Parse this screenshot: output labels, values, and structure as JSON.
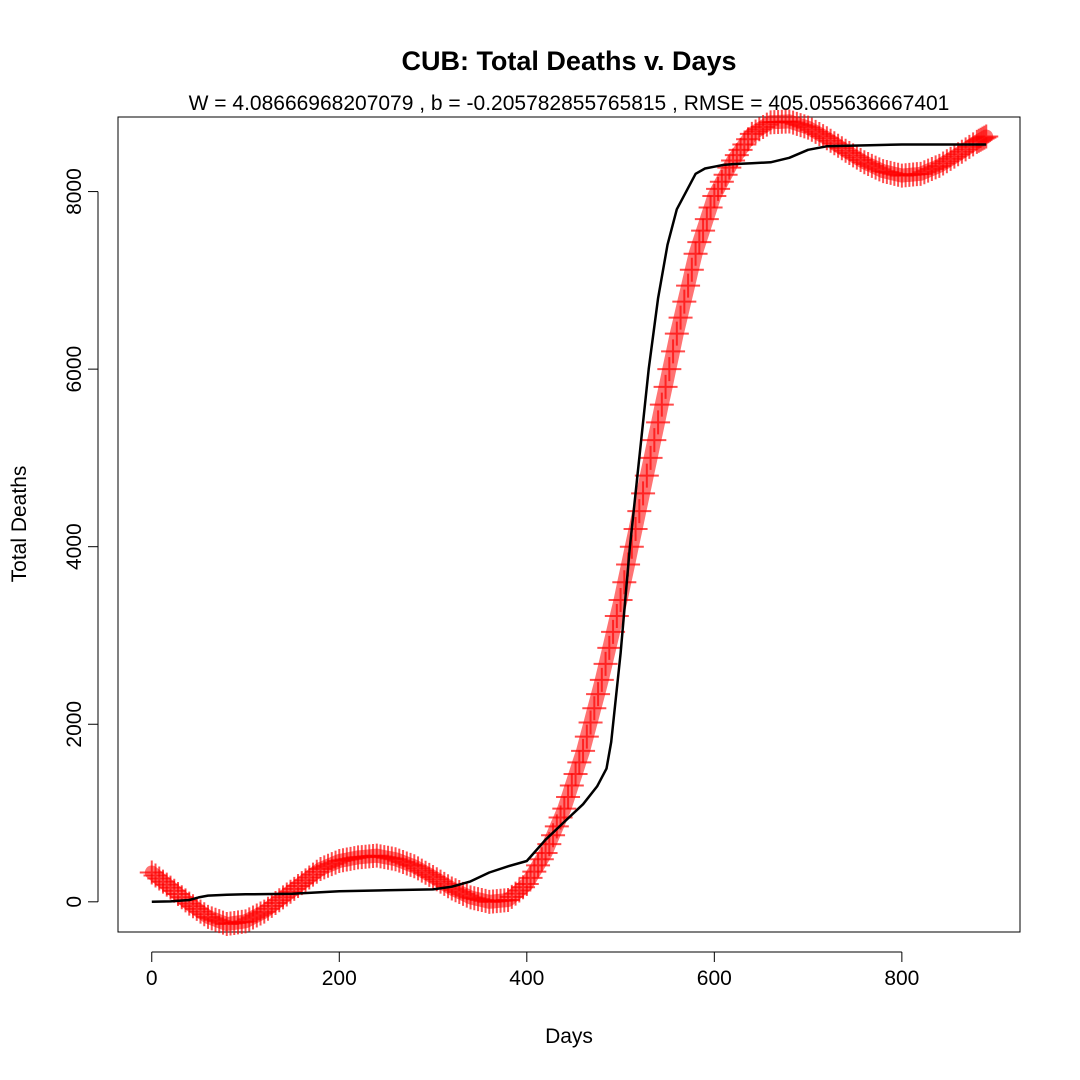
{
  "chart_data": {
    "type": "line",
    "title": "CUB: Total Deaths v. Days",
    "subtitle": "W = 4.08666968207079 , b = -0.205782855765815 , RMSE = 405.055636667401",
    "xlabel": "Days",
    "ylabel": "Total Deaths",
    "xlim": [
      -36,
      926
    ],
    "ylim": [
      -340,
      8840
    ],
    "xticks": [
      0,
      200,
      400,
      600,
      800
    ],
    "yticks": [
      0,
      2000,
      4000,
      6000,
      8000
    ],
    "grid": false,
    "legend": "none",
    "series": [
      {
        "style": "line",
        "color": "#000000",
        "x": [
          0,
          20,
          40,
          50,
          60,
          80,
          100,
          150,
          200,
          250,
          300,
          320,
          340,
          360,
          380,
          400,
          420,
          440,
          460,
          475,
          485,
          490,
          500,
          510,
          520,
          530,
          540,
          550,
          560,
          570,
          580,
          590,
          600,
          610,
          620,
          640,
          660,
          680,
          700,
          720,
          760,
          800,
          850,
          890
        ],
        "y": [
          0,
          5,
          20,
          50,
          70,
          80,
          85,
          90,
          120,
          130,
          140,
          170,
          230,
          330,
          400,
          460,
          700,
          900,
          1100,
          1300,
          1500,
          1800,
          2800,
          4000,
          5000,
          6000,
          6800,
          7400,
          7800,
          8000,
          8200,
          8260,
          8280,
          8300,
          8310,
          8320,
          8330,
          8380,
          8470,
          8510,
          8520,
          8530,
          8530,
          8530
        ]
      },
      {
        "style": "markers",
        "marker": "plus",
        "color": "#ff0000",
        "equation": "1000 * W * (1 + tanh((t - 520) / 50)) + 300 * cos(2 * pi * (t - 4) / 160) * (1 - 0.22 * (1 + tanh((t - 520) / 50))) + 300 * (1 - cos(2 * pi * (t - 4) / 160)) * (0.05 + 0.05 * tanh((t - 520) / 50))",
        "x": [
          0,
          20,
          40,
          60,
          80,
          100,
          120,
          140,
          160,
          180,
          200,
          220,
          240,
          260,
          280,
          300,
          320,
          340,
          360,
          380,
          400,
          420,
          440,
          460,
          480,
          500,
          520,
          540,
          560,
          580,
          600,
          620,
          640,
          660,
          680,
          700,
          720,
          740,
          760,
          780,
          800,
          820,
          840,
          860,
          880,
          890
        ],
        "y": [
          330,
          160,
          -20,
          -170,
          -250,
          -220,
          -110,
          50,
          210,
          370,
          460,
          500,
          520,
          480,
          400,
          280,
          150,
          50,
          0,
          20,
          200,
          550,
          1050,
          1700,
          2500,
          3400,
          4400,
          5400,
          6400,
          7300,
          7950,
          8350,
          8650,
          8780,
          8790,
          8720,
          8600,
          8460,
          8330,
          8230,
          8180,
          8200,
          8290,
          8420,
          8560,
          8620
        ]
      }
    ]
  }
}
